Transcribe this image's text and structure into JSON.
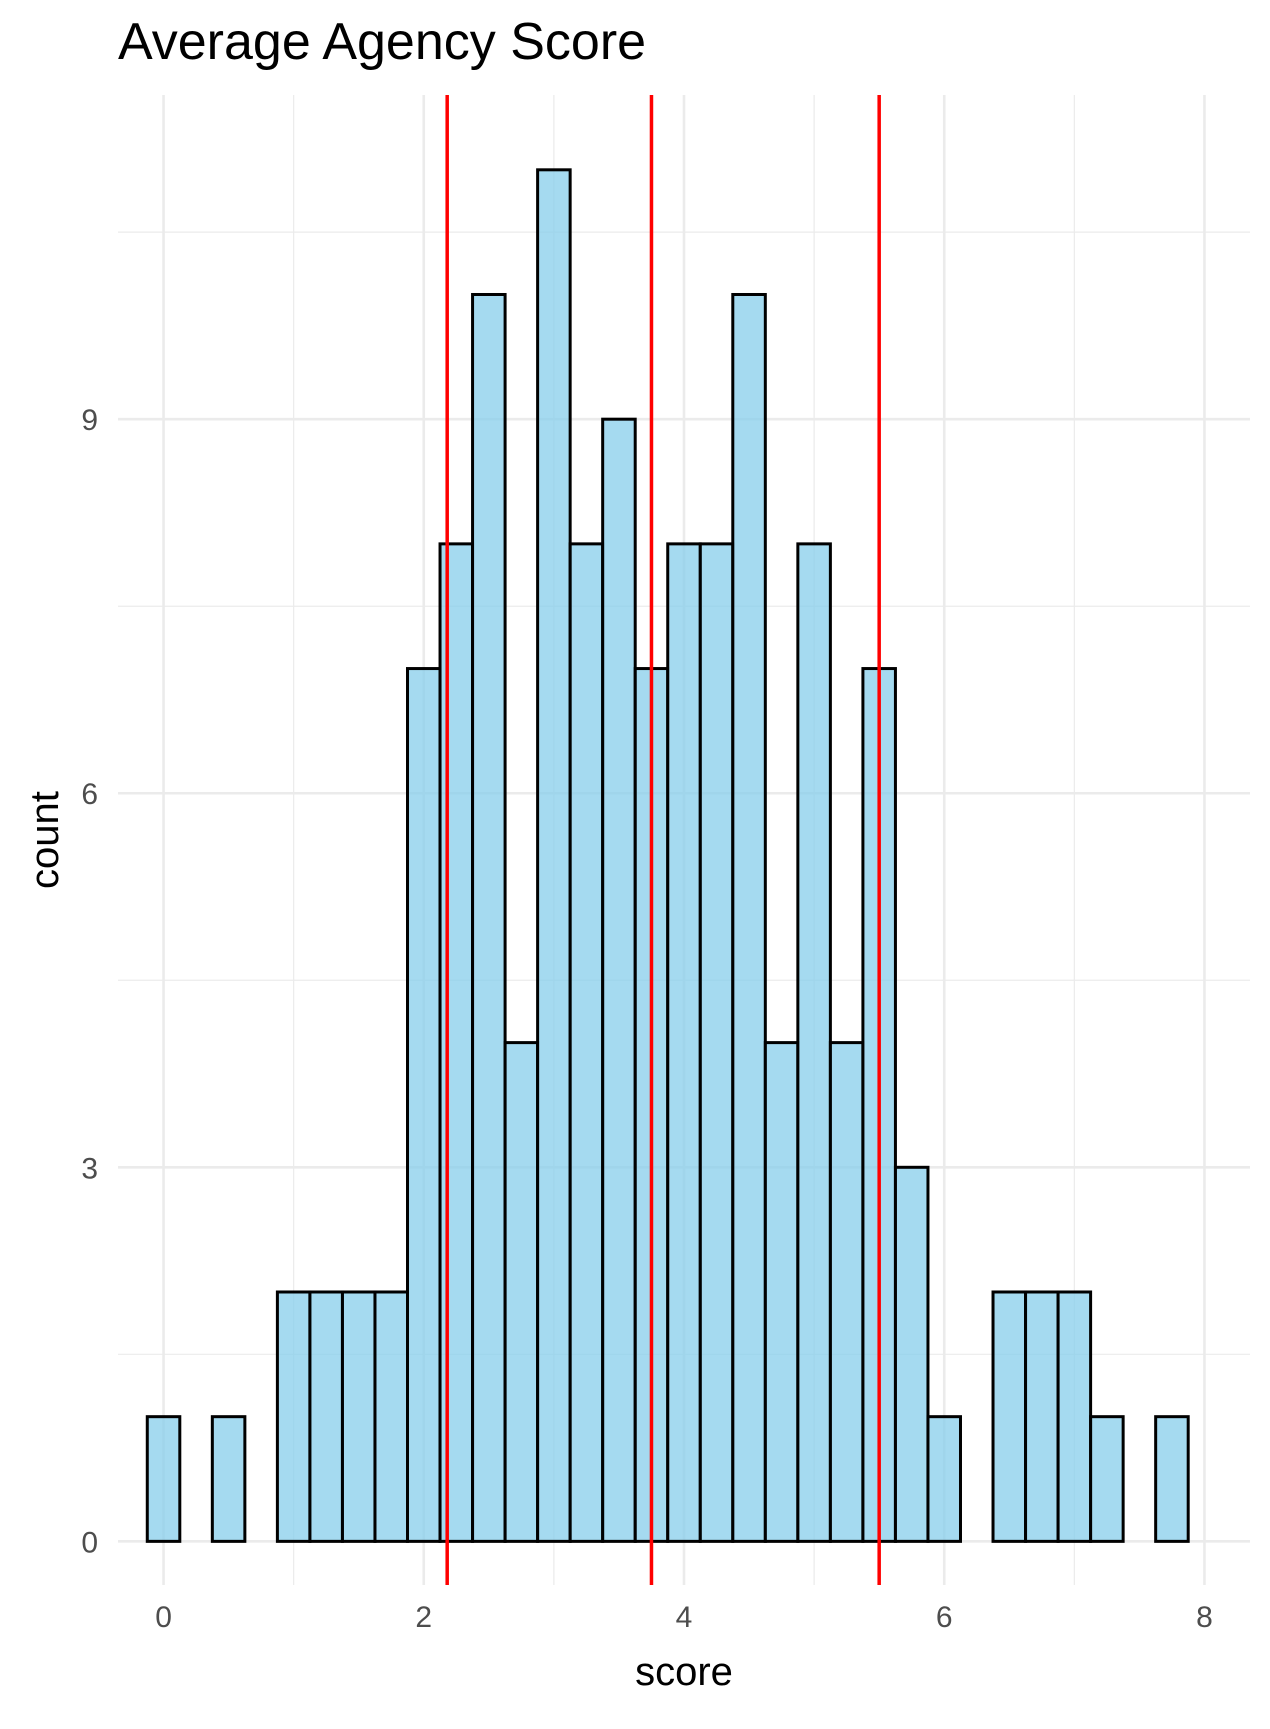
{
  "chart_data": {
    "type": "bar",
    "title": "Average Agency Score",
    "xlabel": "score",
    "ylabel": "count",
    "xlim": [
      -0.35,
      8.35
    ],
    "ylim": [
      -0.35,
      11.6
    ],
    "x_ticks": [
      0,
      2,
      4,
      6,
      8
    ],
    "x_minor_ticks": [
      1,
      3,
      5,
      7
    ],
    "y_ticks": [
      0,
      3,
      6,
      9
    ],
    "y_minor_ticks": [
      1.5,
      4.5,
      7.5,
      10.5
    ],
    "grid": true,
    "bin_width": 0.25,
    "bins": [
      {
        "x": 0.0,
        "count": 1
      },
      {
        "x": 0.25,
        "count": 0
      },
      {
        "x": 0.5,
        "count": 1
      },
      {
        "x": 0.75,
        "count": 0
      },
      {
        "x": 1.0,
        "count": 2
      },
      {
        "x": 1.25,
        "count": 2
      },
      {
        "x": 1.5,
        "count": 2
      },
      {
        "x": 1.75,
        "count": 2
      },
      {
        "x": 2.0,
        "count": 7
      },
      {
        "x": 2.25,
        "count": 8
      },
      {
        "x": 2.5,
        "count": 10
      },
      {
        "x": 2.75,
        "count": 4
      },
      {
        "x": 3.0,
        "count": 11
      },
      {
        "x": 3.25,
        "count": 8
      },
      {
        "x": 3.5,
        "count": 9
      },
      {
        "x": 3.75,
        "count": 7
      },
      {
        "x": 4.0,
        "count": 8
      },
      {
        "x": 4.25,
        "count": 8
      },
      {
        "x": 4.5,
        "count": 10
      },
      {
        "x": 4.75,
        "count": 4
      },
      {
        "x": 5.0,
        "count": 8
      },
      {
        "x": 5.25,
        "count": 4
      },
      {
        "x": 5.5,
        "count": 7
      },
      {
        "x": 5.75,
        "count": 3
      },
      {
        "x": 6.0,
        "count": 1
      },
      {
        "x": 6.25,
        "count": 0
      },
      {
        "x": 6.5,
        "count": 2
      },
      {
        "x": 6.75,
        "count": 2
      },
      {
        "x": 7.0,
        "count": 2
      },
      {
        "x": 7.25,
        "count": 1
      },
      {
        "x": 7.5,
        "count": 0
      },
      {
        "x": 7.75,
        "count": 1
      }
    ],
    "vertical_lines": [
      2.18,
      3.75,
      5.5
    ],
    "bar_fill": "#87ceeb",
    "bar_stroke": "#000000",
    "line_color": "#ff0000",
    "grid_color": "#ebebeb"
  }
}
